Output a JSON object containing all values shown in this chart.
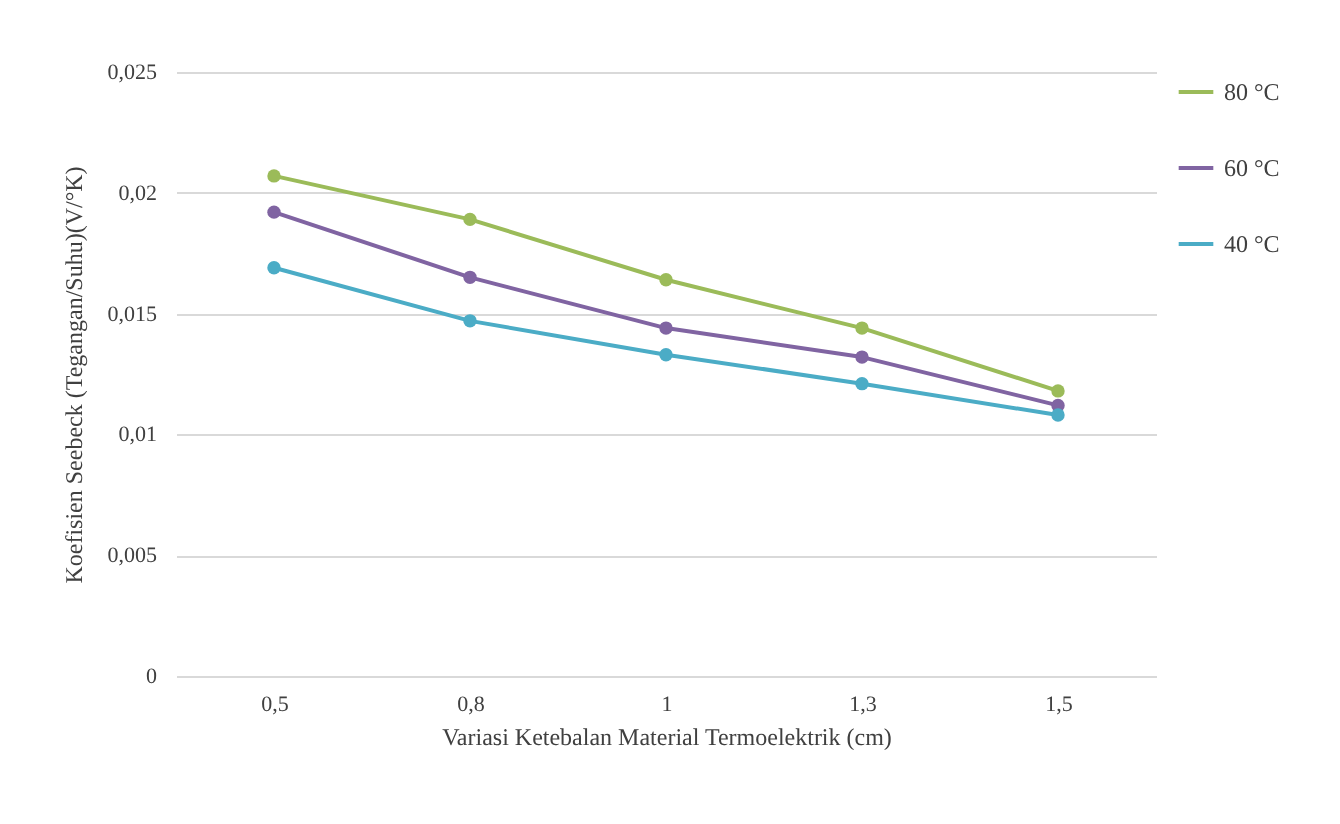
{
  "chart_data": {
    "type": "line",
    "xlabel": "Variasi Ketebalan Material Termoelektrik (cm)",
    "ylabel": "Koefisien Seebeck (Tegangan/Suhu)(V/°K)",
    "categories": [
      "0,5",
      "0,8",
      "1",
      "1,3",
      "1,5"
    ],
    "series": [
      {
        "name": "80 °C",
        "color": "#9bbb59",
        "values": [
          0.0207,
          0.0189,
          0.0164,
          0.0144,
          0.0118
        ]
      },
      {
        "name": "60 °C",
        "color": "#8064a2",
        "values": [
          0.0192,
          0.0165,
          0.0144,
          0.0132,
          0.0112
        ]
      },
      {
        "name": "40 °C",
        "color": "#4bacc6",
        "values": [
          0.0169,
          0.0147,
          0.0133,
          0.0121,
          0.0108
        ]
      }
    ],
    "ylim": [
      0,
      0.025
    ],
    "yticks": [
      0,
      {
        "value": 0.005,
        "label": "0,005"
      },
      {
        "value": 0.01,
        "label": "0,01"
      },
      {
        "value": 0.015,
        "label": "0,015"
      },
      {
        "value": 0.02,
        "label": "0,02"
      },
      {
        "value": 0.025,
        "label": "0,025"
      }
    ],
    "grid": "y",
    "legend": "right",
    "marker": "circle",
    "line_style": "solid"
  }
}
